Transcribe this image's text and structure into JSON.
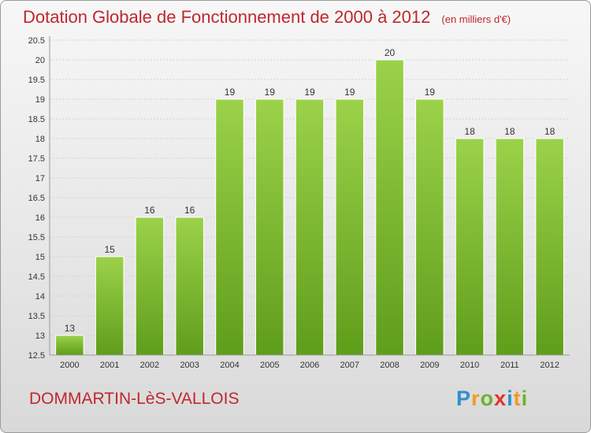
{
  "title": "Dotation Globale de Fonctionnement de 2000 à 2012",
  "unit": "(en milliers d'€)",
  "commune": "DOMMARTIN-LèS-VALLOIS",
  "logo": {
    "letters": [
      {
        "ch": "P",
        "color": "#2e8fd0"
      },
      {
        "ch": "r",
        "color": "#f29a1f"
      },
      {
        "ch": "o",
        "color": "#6ab42d"
      },
      {
        "ch": "x",
        "color": "#e4312b"
      },
      {
        "ch": "i",
        "color": "#2e8fd0"
      },
      {
        "ch": "t",
        "color": "#f29a1f"
      },
      {
        "ch": "i",
        "color": "#6ab42d"
      }
    ]
  },
  "chart_data": {
    "type": "bar",
    "title": "Dotation Globale de Fonctionnement de 2000 à 2012",
    "subtitle": "(en milliers d'€)",
    "categories": [
      "2000",
      "2001",
      "2002",
      "2003",
      "2004",
      "2005",
      "2006",
      "2007",
      "2008",
      "2009",
      "2010",
      "2011",
      "2012"
    ],
    "values": [
      13,
      15,
      16,
      16,
      19,
      19,
      19,
      19,
      20,
      19,
      18,
      18,
      18
    ],
    "ylim": [
      12.5,
      20.5
    ],
    "yticks": [
      "12.5",
      "13",
      "13.5",
      "14",
      "14.5",
      "15",
      "15.5",
      "16",
      "16.5",
      "17",
      "17.5",
      "18",
      "18.5",
      "19",
      "19.5",
      "20",
      "20.5"
    ],
    "grid": true,
    "bar_color": "#7cbf2f"
  }
}
